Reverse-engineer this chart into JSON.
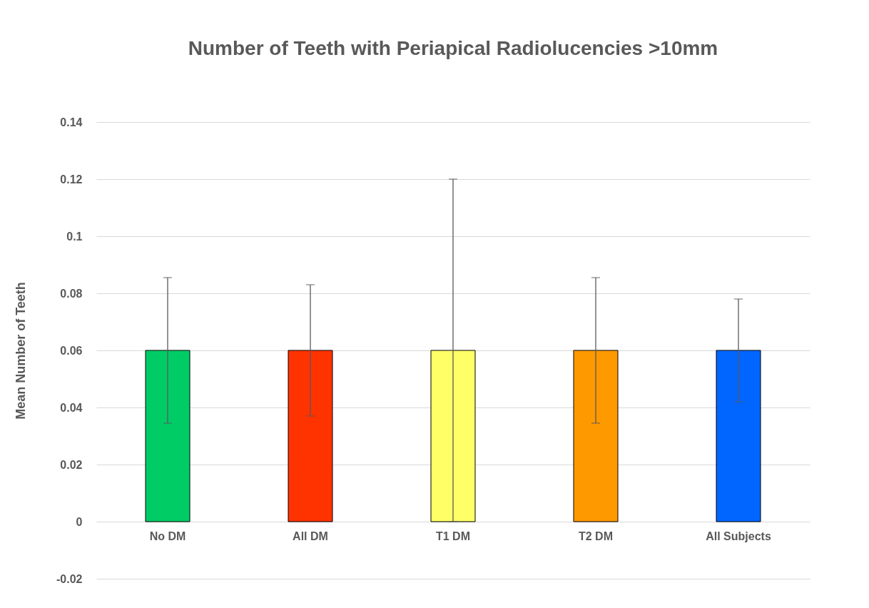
{
  "chart_data": {
    "type": "bar",
    "title": "Number of Teeth with Periapical Radiolucencies >10mm",
    "ylabel": "Mean Number of Teeth",
    "categories": [
      "No DM",
      "All DM",
      "T1 DM",
      "T2 DM",
      "All Subjects"
    ],
    "values": [
      0.06,
      0.06,
      0.06,
      0.06,
      0.06
    ],
    "colors": [
      "#00cc66",
      "#ff3300",
      "#ffff66",
      "#ff9900",
      "#0066ff"
    ],
    "errors": [
      0.0255,
      0.023,
      0.06,
      0.0255,
      0.018
    ],
    "ylim": [
      -0.02,
      0.14
    ],
    "yticks": [
      -0.02,
      0,
      0.02,
      0.04,
      0.06,
      0.08,
      {
        "value": 0.1,
        "label": "0.1"
      },
      0.12,
      0.14
    ],
    "grid": "y"
  }
}
